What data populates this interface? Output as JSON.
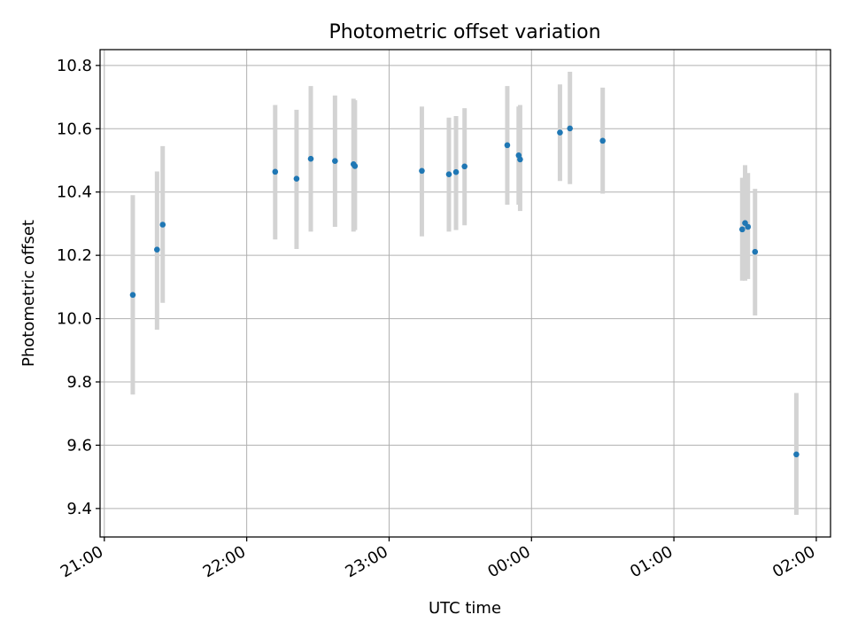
{
  "chart_data": {
    "type": "scatter",
    "title": "Photometric offset variation",
    "xlabel": "UTC time",
    "ylabel": "Photometric offset",
    "grid": true,
    "x_unit": "UTC time (hours from 21:00)",
    "xlim": [
      -0.03,
      5.1
    ],
    "ylim": [
      9.31,
      10.85
    ],
    "x_ticks": [
      {
        "value": 0,
        "label": "21:00"
      },
      {
        "value": 1,
        "label": "22:00"
      },
      {
        "value": 2,
        "label": "23:00"
      },
      {
        "value": 3,
        "label": "00:00"
      },
      {
        "value": 4,
        "label": "01:00"
      },
      {
        "value": 5,
        "label": "02:00"
      }
    ],
    "y_ticks": [
      9.4,
      9.6,
      9.8,
      10.0,
      10.2,
      10.4,
      10.6,
      10.8
    ],
    "point_color": "#1f77b4",
    "errorbar_color": "#d3d3d3",
    "points": [
      {
        "x": 0.2,
        "y": 10.075,
        "lo": 9.76,
        "hi": 10.39
      },
      {
        "x": 0.37,
        "y": 10.218,
        "lo": 9.965,
        "hi": 10.465
      },
      {
        "x": 0.41,
        "y": 10.297,
        "lo": 10.05,
        "hi": 10.545
      },
      {
        "x": 1.2,
        "y": 10.464,
        "lo": 10.25,
        "hi": 10.675
      },
      {
        "x": 1.35,
        "y": 10.442,
        "lo": 10.22,
        "hi": 10.66
      },
      {
        "x": 1.45,
        "y": 10.505,
        "lo": 10.275,
        "hi": 10.735
      },
      {
        "x": 1.62,
        "y": 10.498,
        "lo": 10.29,
        "hi": 10.705
      },
      {
        "x": 1.75,
        "y": 10.488,
        "lo": 10.275,
        "hi": 10.695
      },
      {
        "x": 1.76,
        "y": 10.482,
        "lo": 10.28,
        "hi": 10.69
      },
      {
        "x": 2.23,
        "y": 10.467,
        "lo": 10.26,
        "hi": 10.67
      },
      {
        "x": 2.42,
        "y": 10.456,
        "lo": 10.275,
        "hi": 10.635
      },
      {
        "x": 2.47,
        "y": 10.463,
        "lo": 10.28,
        "hi": 10.64
      },
      {
        "x": 2.53,
        "y": 10.481,
        "lo": 10.295,
        "hi": 10.665
      },
      {
        "x": 2.83,
        "y": 10.548,
        "lo": 10.36,
        "hi": 10.735
      },
      {
        "x": 2.91,
        "y": 10.516,
        "lo": 10.36,
        "hi": 10.67
      },
      {
        "x": 2.92,
        "y": 10.503,
        "lo": 10.34,
        "hi": 10.675
      },
      {
        "x": 3.2,
        "y": 10.588,
        "lo": 10.435,
        "hi": 10.74
      },
      {
        "x": 3.27,
        "y": 10.601,
        "lo": 10.425,
        "hi": 10.78
      },
      {
        "x": 3.5,
        "y": 10.562,
        "lo": 10.395,
        "hi": 10.73
      },
      {
        "x": 4.48,
        "y": 10.282,
        "lo": 10.12,
        "hi": 10.445
      },
      {
        "x": 4.5,
        "y": 10.302,
        "lo": 10.12,
        "hi": 10.485
      },
      {
        "x": 4.52,
        "y": 10.29,
        "lo": 10.125,
        "hi": 10.46
      },
      {
        "x": 4.57,
        "y": 10.211,
        "lo": 10.01,
        "hi": 10.41
      },
      {
        "x": 4.86,
        "y": 9.571,
        "lo": 9.38,
        "hi": 9.765
      }
    ]
  }
}
